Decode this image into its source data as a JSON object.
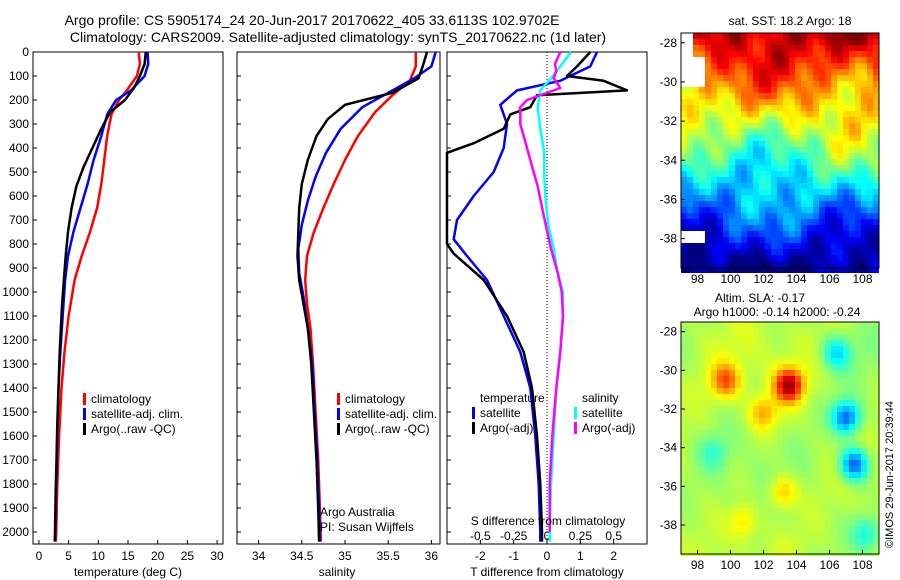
{
  "header": {
    "line1": "Argo profile: CS 5905174_24 20-Jun-2017 20170622_405 33.6113S 102.9702E",
    "line2": "Climatology: CARS2009. Satellite-adjusted climatology: synTS_20170622.nc (1d later)"
  },
  "colors": {
    "climatology": "#ff0000",
    "satellite": "#0000ff",
    "argo": "#000000",
    "sal_satellite": "#00ffff",
    "sal_argo": "#ff00ff"
  },
  "chart_data": [
    {
      "id": "temperature",
      "type": "line",
      "xlabel": "temperature (deg C)",
      "xlim": [
        -1,
        31
      ],
      "ylim": [
        2050,
        0
      ],
      "xticks": [
        0,
        5,
        10,
        15,
        20,
        25,
        30
      ],
      "yticks": [
        0,
        100,
        200,
        300,
        400,
        500,
        600,
        700,
        800,
        900,
        1000,
        1100,
        1200,
        1300,
        1400,
        1500,
        1600,
        1700,
        1800,
        1900,
        2000
      ],
      "legend": [
        "climatology",
        "satellite-adj. clim.",
        "Argo(..raw -QC)"
      ],
      "series": [
        {
          "name": "climatology",
          "color": "#ff0000",
          "points": [
            [
              16.8,
              0
            ],
            [
              17.0,
              50
            ],
            [
              16.5,
              100
            ],
            [
              14.8,
              160
            ],
            [
              13.5,
              200
            ],
            [
              12.2,
              260
            ],
            [
              11.5,
              350
            ],
            [
              11.0,
              450
            ],
            [
              10.5,
              550
            ],
            [
              9.8,
              650
            ],
            [
              8.6,
              750
            ],
            [
              7.2,
              850
            ],
            [
              6.0,
              950
            ],
            [
              5.0,
              1100
            ],
            [
              4.3,
              1250
            ],
            [
              3.8,
              1400
            ],
            [
              3.4,
              1600
            ],
            [
              3.1,
              1800
            ],
            [
              2.9,
              2000
            ],
            [
              2.85,
              2040
            ]
          ]
        },
        {
          "name": "satellite-adj. clim.",
          "color": "#0000ff",
          "points": [
            [
              18.3,
              0
            ],
            [
              18.4,
              50
            ],
            [
              17.8,
              100
            ],
            [
              15.5,
              160
            ],
            [
              13.0,
              200
            ],
            [
              11.5,
              260
            ],
            [
              10.5,
              350
            ],
            [
              9.2,
              450
            ],
            [
              8.2,
              550
            ],
            [
              7.0,
              650
            ],
            [
              5.8,
              750
            ],
            [
              4.9,
              850
            ],
            [
              4.4,
              950
            ],
            [
              4.0,
              1100
            ],
            [
              3.6,
              1250
            ],
            [
              3.3,
              1400
            ],
            [
              3.1,
              1600
            ],
            [
              2.9,
              1800
            ],
            [
              2.75,
              2000
            ],
            [
              2.7,
              2040
            ]
          ]
        },
        {
          "name": "Argo(..raw -QC)",
          "color": "#000000",
          "points": [
            [
              18.0,
              0
            ],
            [
              17.8,
              50
            ],
            [
              17.0,
              100
            ],
            [
              16.0,
              150
            ],
            [
              14.5,
              200
            ],
            [
              12.0,
              250
            ],
            [
              10.5,
              320
            ],
            [
              9.0,
              400
            ],
            [
              7.5,
              480
            ],
            [
              6.3,
              560
            ],
            [
              5.5,
              650
            ],
            [
              4.9,
              750
            ],
            [
              4.5,
              850
            ],
            [
              4.2,
              950
            ],
            [
              3.9,
              1050
            ],
            [
              3.7,
              1150
            ],
            [
              3.5,
              1250
            ],
            [
              3.3,
              1400
            ],
            [
              3.1,
              1550
            ],
            [
              2.95,
              1700
            ],
            [
              2.8,
              1850
            ],
            [
              2.7,
              2000
            ],
            [
              2.65,
              2040
            ]
          ]
        }
      ]
    },
    {
      "id": "salinity",
      "type": "line",
      "xlabel": "salinity",
      "xlim": [
        33.75,
        36.1
      ],
      "ylim": [
        2050,
        0
      ],
      "xticks": [
        34,
        34.5,
        35,
        35.5,
        36
      ],
      "xticklabels": [
        "34",
        "34.5",
        "35",
        "35.5",
        "36"
      ],
      "legend": [
        "climatology",
        "satellite-adj. clim.",
        "Argo(..raw -QC)"
      ],
      "annotations": [
        "Argo Australia",
        "PI: Susan Wijffels"
      ],
      "series": [
        {
          "name": "climatology",
          "color": "#ff0000",
          "points": [
            [
              35.82,
              0
            ],
            [
              35.82,
              60
            ],
            [
              35.75,
              120
            ],
            [
              35.55,
              180
            ],
            [
              35.35,
              250
            ],
            [
              35.15,
              350
            ],
            [
              35.0,
              450
            ],
            [
              34.87,
              550
            ],
            [
              34.75,
              650
            ],
            [
              34.64,
              750
            ],
            [
              34.56,
              850
            ],
            [
              34.54,
              950
            ],
            [
              34.56,
              1050
            ],
            [
              34.6,
              1150
            ],
            [
              34.63,
              1300
            ],
            [
              34.66,
              1500
            ],
            [
              34.69,
              1700
            ],
            [
              34.71,
              1900
            ],
            [
              34.72,
              2040
            ]
          ]
        },
        {
          "name": "satellite-adj. clim.",
          "color": "#0000ff",
          "points": [
            [
              36.05,
              0
            ],
            [
              36.0,
              60
            ],
            [
              35.8,
              110
            ],
            [
              35.5,
              170
            ],
            [
              35.2,
              230
            ],
            [
              34.95,
              320
            ],
            [
              34.78,
              420
            ],
            [
              34.66,
              520
            ],
            [
              34.57,
              620
            ],
            [
              34.5,
              720
            ],
            [
              34.46,
              820
            ],
            [
              34.47,
              920
            ],
            [
              34.52,
              1020
            ],
            [
              34.57,
              1150
            ],
            [
              34.62,
              1300
            ],
            [
              34.65,
              1500
            ],
            [
              34.68,
              1700
            ],
            [
              34.7,
              1900
            ],
            [
              34.71,
              2040
            ]
          ]
        },
        {
          "name": "Argo(..raw -QC)",
          "color": "#000000",
          "points": [
            [
              35.95,
              0
            ],
            [
              35.9,
              60
            ],
            [
              35.85,
              110
            ],
            [
              35.55,
              170
            ],
            [
              35.0,
              220
            ],
            [
              34.8,
              280
            ],
            [
              34.67,
              350
            ],
            [
              34.57,
              450
            ],
            [
              34.5,
              550
            ],
            [
              34.47,
              650
            ],
            [
              34.46,
              750
            ],
            [
              34.45,
              850
            ],
            [
              34.47,
              950
            ],
            [
              34.52,
              1050
            ],
            [
              34.57,
              1150
            ],
            [
              34.61,
              1300
            ],
            [
              34.64,
              1500
            ],
            [
              34.67,
              1700
            ],
            [
              34.69,
              1900
            ],
            [
              34.7,
              2040
            ]
          ]
        }
      ]
    },
    {
      "id": "difference",
      "type": "line",
      "xlabel": "T difference from climatology",
      "top_xlabel": "S difference from climatology",
      "xlim": [
        -3,
        3
      ],
      "s_xlim": [
        -0.75,
        0.75
      ],
      "ylim": [
        2050,
        0
      ],
      "xticks": [
        -2,
        -1,
        0,
        1,
        2
      ],
      "top_xticks": [
        -0.5,
        -0.25,
        0,
        0.25,
        0.5
      ],
      "top_xticklabels": [
        "-0.5",
        "-0.25",
        "0",
        "0.25",
        "0.5"
      ],
      "legend_headers": [
        "temperature",
        "salinity"
      ],
      "legend": [
        "satellite",
        "Argo(-adj)",
        "satellite",
        "Argo(-adj)"
      ],
      "series": [
        {
          "name": "satellite",
          "group": "temperature",
          "color": "#0000ff",
          "points": [
            [
              1.5,
              0
            ],
            [
              1.3,
              60
            ],
            [
              0.4,
              120
            ],
            [
              -0.9,
              160
            ],
            [
              -1.4,
              220
            ],
            [
              -1.2,
              300
            ],
            [
              -1.3,
              400
            ],
            [
              -1.6,
              500
            ],
            [
              -2.2,
              600
            ],
            [
              -2.7,
              700
            ],
            [
              -2.8,
              780
            ],
            [
              -2.4,
              850
            ],
            [
              -1.8,
              950
            ],
            [
              -1.3,
              1100
            ],
            [
              -0.8,
              1250
            ],
            [
              -0.5,
              1400
            ],
            [
              -0.35,
              1600
            ],
            [
              -0.25,
              1800
            ],
            [
              -0.2,
              2000
            ],
            [
              -0.2,
              2040
            ]
          ]
        },
        {
          "name": "Argo(-adj)",
          "group": "temperature",
          "color": "#000000",
          "points": [
            [
              1.3,
              0
            ],
            [
              0.9,
              60
            ],
            [
              0.6,
              100
            ],
            [
              1.7,
              120
            ],
            [
              2.4,
              160
            ],
            [
              -0.3,
              180
            ],
            [
              -0.5,
              230
            ],
            [
              -1.1,
              260
            ],
            [
              -1.3,
              320
            ],
            [
              -2.2,
              380
            ],
            [
              -3.0,
              420
            ],
            [
              -3.0,
              800
            ],
            [
              -2.8,
              840
            ],
            [
              -1.9,
              950
            ],
            [
              -1.2,
              1100
            ],
            [
              -0.7,
              1250
            ],
            [
              -0.45,
              1400
            ],
            [
              -0.3,
              1600
            ],
            [
              -0.2,
              1800
            ],
            [
              -0.15,
              2000
            ],
            [
              -0.15,
              2040
            ]
          ]
        },
        {
          "name": "satellite",
          "group": "salinity",
          "color": "#00ffff",
          "points": [
            [
              0.18,
              0
            ],
            [
              0.1,
              60
            ],
            [
              0.03,
              110
            ],
            [
              -0.05,
              160
            ],
            [
              -0.07,
              230
            ],
            [
              -0.05,
              320
            ],
            [
              -0.02,
              420
            ],
            [
              -0.02,
              520
            ],
            [
              -0.01,
              620
            ],
            [
              0.01,
              720
            ],
            [
              0.05,
              820
            ],
            [
              0.08,
              920
            ],
            [
              0.12,
              1000
            ],
            [
              0.12,
              1100
            ],
            [
              0.1,
              1250
            ],
            [
              0.07,
              1400
            ],
            [
              0.05,
              1600
            ],
            [
              0.03,
              1800
            ],
            [
              0.02,
              2000
            ],
            [
              0.02,
              2040
            ]
          ]
        },
        {
          "name": "Argo(-adj)",
          "group": "salinity",
          "color": "#ff00ff",
          "points": [
            [
              0.1,
              0
            ],
            [
              0.06,
              50
            ],
            [
              0.07,
              80
            ],
            [
              0.05,
              110
            ],
            [
              0.1,
              150
            ],
            [
              -0.15,
              200
            ],
            [
              -0.2,
              230
            ],
            [
              -0.2,
              300
            ],
            [
              -0.16,
              380
            ],
            [
              -0.11,
              480
            ],
            [
              -0.07,
              560
            ],
            [
              -0.04,
              640
            ],
            [
              -0.01,
              720
            ],
            [
              0.03,
              820
            ],
            [
              0.08,
              920
            ],
            [
              0.11,
              1000
            ],
            [
              0.12,
              1100
            ],
            [
              0.1,
              1250
            ],
            [
              0.07,
              1400
            ],
            [
              0.04,
              1600
            ],
            [
              0.02,
              1800
            ],
            [
              0.02,
              2000
            ]
          ]
        }
      ]
    },
    {
      "id": "sst-map",
      "type": "heatmap",
      "title": "sat. SST: 18.2 Argo: 18",
      "xlim": [
        97,
        109
      ],
      "ylim": [
        -39.5,
        -27.5
      ],
      "xticks": [
        98,
        100,
        102,
        104,
        106,
        108
      ],
      "yticks": [
        -38,
        -36,
        -34,
        -32,
        -30,
        -28
      ]
    },
    {
      "id": "sla-map",
      "type": "heatmap",
      "title_line1": "Altim. SLA: -0.17",
      "title_line2": "Argo h1000: -0.14 h2000: -0.24",
      "xlim": [
        97,
        109
      ],
      "ylim": [
        -39.5,
        -27.5
      ],
      "xticks": [
        98,
        100,
        102,
        104,
        106,
        108
      ],
      "yticks": [
        -38,
        -36,
        -34,
        -32,
        -30,
        -28
      ]
    }
  ],
  "footer": {
    "credit": "©IMOS 29-Jun-2017 20:39:44"
  }
}
